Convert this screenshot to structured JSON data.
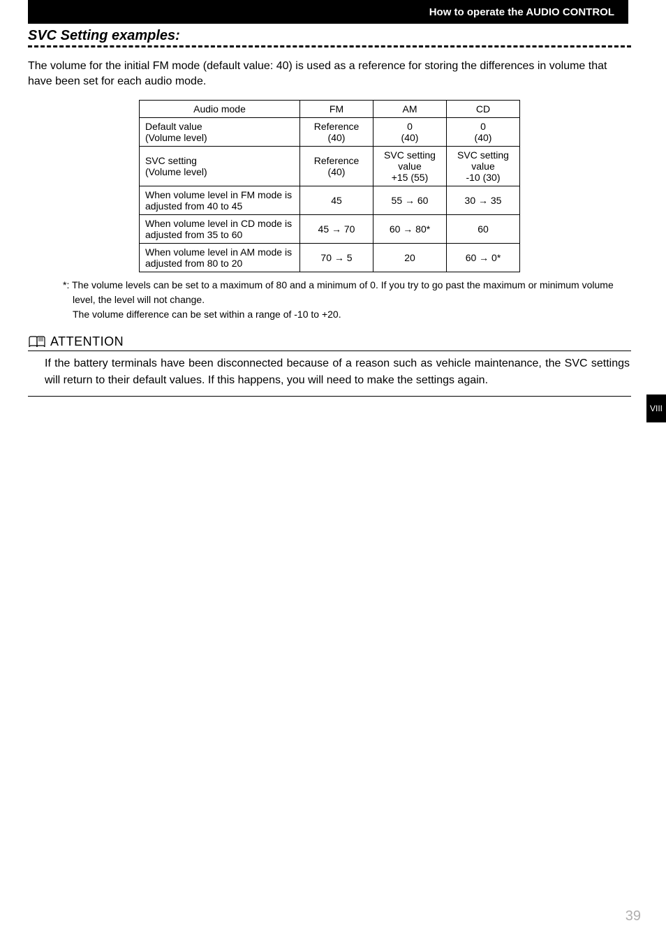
{
  "header": {
    "title": "How to operate the AUDIO CONTROL"
  },
  "sideTab": {
    "label": "VIII"
  },
  "section": {
    "title": "SVC Setting examples:",
    "intro": "The volume for the initial FM mode (default value: 40) is used as a reference for storing the differences in volume that have been set for each audio mode."
  },
  "table": {
    "columns": [
      "Audio mode",
      "FM",
      "AM",
      "CD"
    ],
    "rows": [
      {
        "label": "Default value\n(Volume level)",
        "fm": "Reference\n(40)",
        "am": "0\n(40)",
        "cd": "0\n(40)"
      },
      {
        "label": "SVC setting\n(Volume level)",
        "fm": "Reference\n(40)",
        "am": "SVC setting\nvalue\n+15 (55)",
        "cd": "SVC setting\nvalue\n-10 (30)"
      },
      {
        "label": "When volume level in FM mode is adjusted from 40 to 45",
        "fm": "45",
        "am": "55 → 60",
        "cd": "30 → 35"
      },
      {
        "label": "When volume level in CD mode is adjusted from 35 to 60",
        "fm": "45 → 70",
        "am": "60 → 80*",
        "cd": "60"
      },
      {
        "label": "When volume level in AM mode is adjusted from 80 to 20",
        "fm": "70 → 5",
        "am": "20",
        "cd": "60 → 0*"
      }
    ]
  },
  "footnote": {
    "marker": "*:",
    "line1": "The volume levels can be set to a maximum of 80 and a minimum of 0. If you try to go past the maximum or minimum volume level, the level will not change.",
    "line2": "The volume difference can be set within a range of -10 to +20."
  },
  "attention": {
    "title": "ATTENTION",
    "body": "If the battery terminals have been disconnected because of a reason such as vehicle maintenance, the SVC settings will return to their default values. If this happens, you will need to make the settings again."
  },
  "pageNumber": "39"
}
